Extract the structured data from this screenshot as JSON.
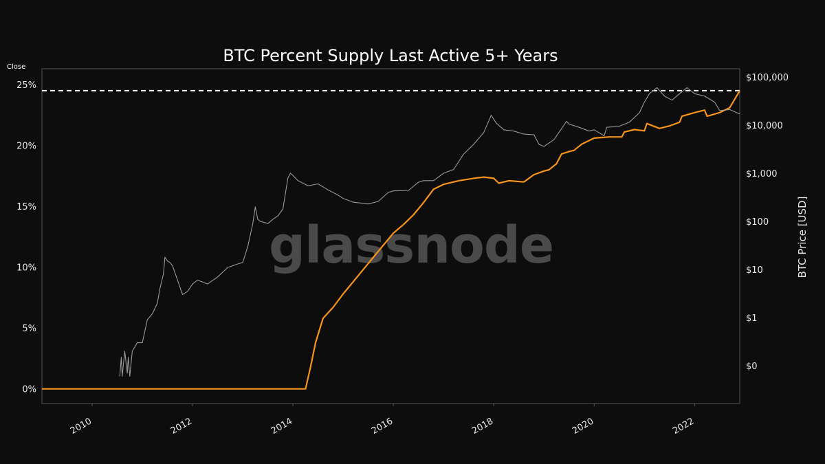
{
  "ui": {
    "close_label": "Close",
    "watermark": "glassnode"
  },
  "chart_data": {
    "type": "line",
    "title": "BTC Percent Supply Last Active 5+ Years",
    "xlabel": "",
    "ylabel_left": "",
    "ylabel_right": "BTC Price [USD]",
    "xlim": [
      2009.0,
      2022.9
    ],
    "ylim_left": [
      -1.2,
      26.3
    ],
    "y_right_scale": "log",
    "x_ticks": [
      "2010",
      "2012",
      "2014",
      "2016",
      "2018",
      "2020",
      "2022"
    ],
    "y_left_ticks": [
      "0%",
      "5%",
      "10%",
      "15%",
      "20%",
      "25%"
    ],
    "y_right_ticks": [
      "$0",
      "$1",
      "$10",
      "$100",
      "$1,000",
      "$10,000",
      "$100,000"
    ],
    "reference_line": {
      "value": 24.5,
      "style": "dashed",
      "color": "#ffffff"
    },
    "grid": false,
    "colors": {
      "supply": "#f7931a",
      "price": "#9a9a9a",
      "reference": "#ffffff",
      "axes": "#555555"
    },
    "series": [
      {
        "key": "supply",
        "axis": "left",
        "x": [
          2009.0,
          2014.25,
          2014.35,
          2014.45,
          2014.6,
          2014.8,
          2015.0,
          2015.2,
          2015.4,
          2015.6,
          2015.8,
          2016.0,
          2016.2,
          2016.4,
          2016.6,
          2016.8,
          2017.0,
          2017.3,
          2017.6,
          2017.8,
          2018.0,
          2018.1,
          2018.3,
          2018.6,
          2018.8,
          2019.0,
          2019.1,
          2019.25,
          2019.35,
          2019.5,
          2019.6,
          2019.75,
          2020.0,
          2020.3,
          2020.55,
          2020.6,
          2020.8,
          2021.0,
          2021.05,
          2021.3,
          2021.5,
          2021.7,
          2021.75,
          2022.0,
          2022.2,
          2022.25,
          2022.5,
          2022.7,
          2022.8,
          2022.9
        ],
        "y": [
          0,
          0,
          1.8,
          3.8,
          5.8,
          6.7,
          7.8,
          8.8,
          9.8,
          10.8,
          11.8,
          12.8,
          13.5,
          14.3,
          15.3,
          16.4,
          16.8,
          17.1,
          17.3,
          17.4,
          17.3,
          16.9,
          17.1,
          17.0,
          17.6,
          17.9,
          18.0,
          18.5,
          19.3,
          19.5,
          19.6,
          20.1,
          20.6,
          20.7,
          20.7,
          21.1,
          21.3,
          21.2,
          21.8,
          21.4,
          21.6,
          21.9,
          22.4,
          22.7,
          22.9,
          22.4,
          22.7,
          23.1,
          23.8,
          24.5
        ]
      },
      {
        "key": "price",
        "axis": "right",
        "x": [
          2010.55,
          2010.58,
          2010.6,
          2010.62,
          2010.65,
          2010.7,
          2010.72,
          2010.75,
          2010.8,
          2010.9,
          2011.0,
          2011.1,
          2011.2,
          2011.3,
          2011.35,
          2011.42,
          2011.45,
          2011.5,
          2011.55,
          2011.6,
          2011.7,
          2011.8,
          2011.9,
          2012.0,
          2012.1,
          2012.3,
          2012.5,
          2012.7,
          2012.9,
          2013.0,
          2013.1,
          2013.2,
          2013.25,
          2013.3,
          2013.35,
          2013.5,
          2013.6,
          2013.7,
          2013.8,
          2013.9,
          2013.95,
          2014.0,
          2014.1,
          2014.3,
          2014.5,
          2014.7,
          2014.9,
          2015.0,
          2015.2,
          2015.5,
          2015.7,
          2015.9,
          2016.0,
          2016.3,
          2016.5,
          2016.6,
          2016.8,
          2017.0,
          2017.2,
          2017.4,
          2017.6,
          2017.8,
          2017.95,
          2018.05,
          2018.2,
          2018.4,
          2018.6,
          2018.8,
          2018.9,
          2019.0,
          2019.2,
          2019.45,
          2019.5,
          2019.7,
          2019.9,
          2020.0,
          2020.2,
          2020.25,
          2020.5,
          2020.7,
          2020.9,
          2021.0,
          2021.1,
          2021.25,
          2021.4,
          2021.55,
          2021.7,
          2021.85,
          2022.0,
          2022.2,
          2022.4,
          2022.5,
          2022.7,
          2022.9
        ],
        "y": [
          0.06,
          0.15,
          0.06,
          0.1,
          0.2,
          0.07,
          0.15,
          0.06,
          0.2,
          0.3,
          0.3,
          0.9,
          1.2,
          2.0,
          4.0,
          8.0,
          18.0,
          15.0,
          14.0,
          12.0,
          6.0,
          3.0,
          3.5,
          5.0,
          6.0,
          5.0,
          7.0,
          11.0,
          13.0,
          14.0,
          30.0,
          90.0,
          200.0,
          110.0,
          100.0,
          90.0,
          110.0,
          130.0,
          180.0,
          800.0,
          1000.0,
          900.0,
          700.0,
          550.0,
          600.0,
          450.0,
          350.0,
          300.0,
          250.0,
          230.0,
          260.0,
          400.0,
          430.0,
          440.0,
          650.0,
          700.0,
          700.0,
          1000.0,
          1200.0,
          2500.0,
          4000.0,
          7000.0,
          16000.0,
          11000.0,
          8000.0,
          7500.0,
          6500.0,
          6300.0,
          4000.0,
          3600.0,
          5000.0,
          12000.0,
          10500.0,
          9000.0,
          7500.0,
          8000.0,
          6000.0,
          9000.0,
          9500.0,
          11500.0,
          18000.0,
          30000.0,
          45000.0,
          60000.0,
          40000.0,
          33000.0,
          45000.0,
          60000.0,
          45000.0,
          40000.0,
          30000.0,
          20000.0,
          21000.0,
          17000.0
        ]
      }
    ]
  }
}
